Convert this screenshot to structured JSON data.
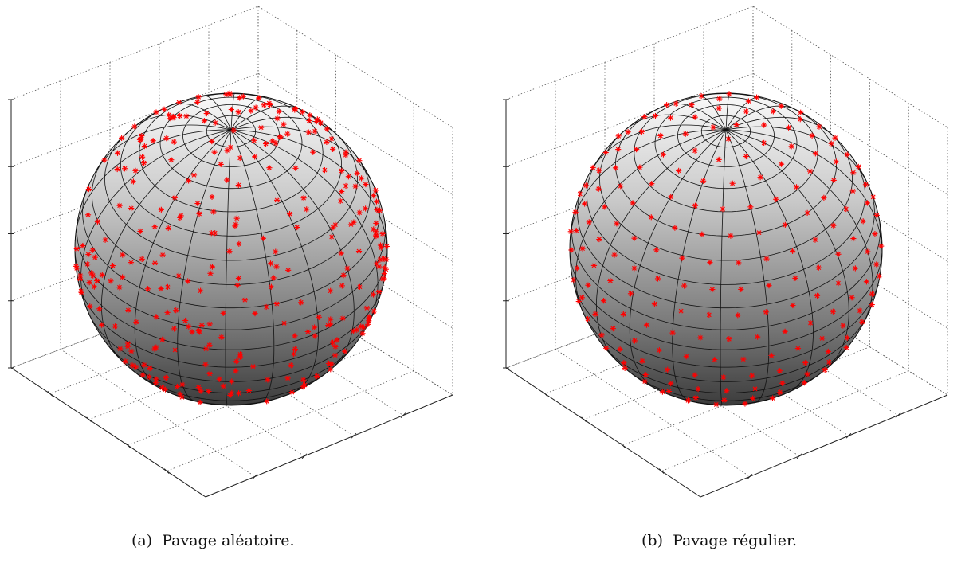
{
  "figure": {
    "panels": [
      {
        "id": "a",
        "label": "(a)",
        "caption": "Pavage aléatoire.",
        "distribution": "random",
        "marker": "*",
        "marker_color": "#ff0000",
        "points": 600
      },
      {
        "id": "b",
        "label": "(b)",
        "caption": "Pavage régulier.",
        "distribution": "regular",
        "marker": "*",
        "marker_color": "#ff0000",
        "points": 600
      }
    ],
    "surface": "sphere",
    "surface_shading": "gray gradient",
    "mesh": {
      "latitude_lines": 20,
      "longitude_lines": 20
    },
    "axes": "3d box with dotted grid",
    "tick_labels": "none"
  }
}
